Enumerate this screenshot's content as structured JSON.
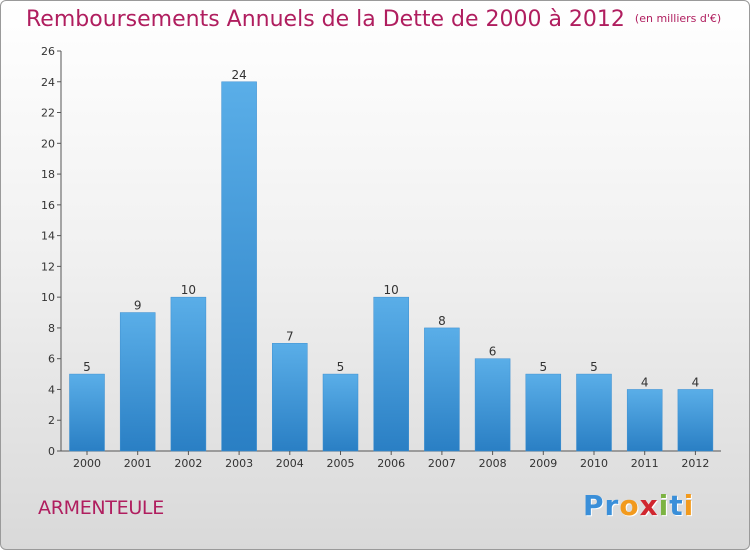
{
  "header": {
    "title": "Remboursements Annuels de la Dette de 2000 à 2012",
    "unit": "(en milliers d'€)"
  },
  "footer": {
    "commune": "ARMENTEULE",
    "logo_letters": [
      {
        "ch": "P",
        "color": "#3a8fd9"
      },
      {
        "ch": "r",
        "color": "#3a8fd9"
      },
      {
        "ch": "o",
        "color": "#f29a1d"
      },
      {
        "ch": "x",
        "color": "#d0262f"
      },
      {
        "ch": "i",
        "color": "#7cb342"
      },
      {
        "ch": "t",
        "color": "#3a8fd9"
      },
      {
        "ch": "i",
        "color": "#f29a1d"
      }
    ]
  },
  "colors": {
    "bar_light": "#5aaee8",
    "bar_dark": "#2a7fc4",
    "title": "#b01e5f"
  },
  "chart_data": {
    "type": "bar",
    "categories": [
      "2000",
      "2001",
      "2002",
      "2003",
      "2004",
      "2005",
      "2006",
      "2007",
      "2008",
      "2009",
      "2010",
      "2011",
      "2012"
    ],
    "values": [
      5,
      9,
      10,
      24,
      7,
      5,
      10,
      8,
      6,
      5,
      5,
      4,
      4
    ],
    "ylim": [
      0,
      26
    ],
    "yticks": [
      0,
      2,
      4,
      6,
      8,
      10,
      12,
      14,
      16,
      18,
      20,
      22,
      24,
      26
    ],
    "grid": false,
    "legend": "none"
  }
}
